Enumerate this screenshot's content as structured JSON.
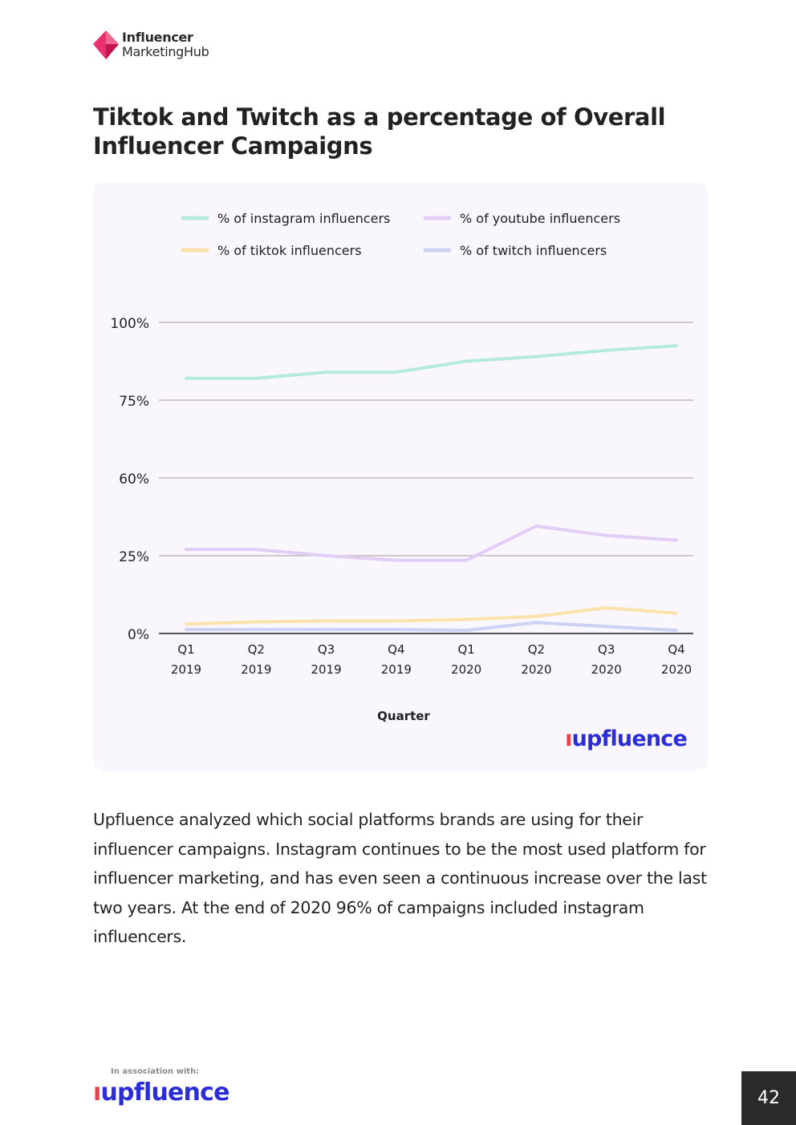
{
  "header": {
    "brand_line1": "Influencer",
    "brand_line2": "MarketingHub"
  },
  "page_title": "Tiktok and Twitch as a percentage of Overall Influencer Campaigns",
  "chart_data": {
    "type": "line",
    "title": "",
    "xlabel": "Quarter",
    "ylabel": "",
    "categories": [
      [
        "Q1",
        "2019"
      ],
      [
        "Q2",
        "2019"
      ],
      [
        "Q3",
        "2019"
      ],
      [
        "Q4",
        "2019"
      ],
      [
        "Q1",
        "2020"
      ],
      [
        "Q2",
        "2020"
      ],
      [
        "Q3",
        "2020"
      ],
      [
        "Q4",
        "2020"
      ]
    ],
    "y_ticks": [
      {
        "label": "100%",
        "level": 4
      },
      {
        "label": "75%",
        "level": 3
      },
      {
        "label": "60%",
        "level": 2
      },
      {
        "label": "25%",
        "level": 1
      },
      {
        "label": "0%",
        "level": 0
      }
    ],
    "grid": true,
    "legend_position": "top",
    "series": [
      {
        "name": "% of instagram influencers",
        "color": "#b3ead8",
        "values": [
          3.28,
          3.28,
          3.36,
          3.36,
          3.5,
          3.56,
          3.64,
          3.7
        ]
      },
      {
        "name": "% of youtube influencers",
        "color": "#e2cdf6",
        "values": [
          1.08,
          1.08,
          1.0,
          0.94,
          0.94,
          1.38,
          1.26,
          1.2
        ]
      },
      {
        "name": "% of tiktok influencers",
        "color": "#fbe2ab",
        "values": [
          0.12,
          0.15,
          0.16,
          0.16,
          0.18,
          0.22,
          0.33,
          0.26
        ]
      },
      {
        "name": "% of twitch influencers",
        "color": "#cbd2f4",
        "values": [
          0.05,
          0.05,
          0.05,
          0.05,
          0.04,
          0.14,
          0.09,
          0.04
        ]
      }
    ],
    "brand": "upfluence"
  },
  "body_text": "Upfluence analyzed which social platforms brands are using for their influencer campaigns. Instagram continues to be the most used platform for influencer marketing, and has even seen a continuous increase over the last two years. At the end of 2020 96% of campaigns included instagram influencers.",
  "footer": {
    "association_label": "In association with:",
    "brand": "upfluence",
    "page_number": "42"
  },
  "colors": {
    "brand_blue": "#2b2ed6",
    "brand_red": "#e8424f",
    "logo_pink": "#e8316e",
    "card_background": "#f9f6fd",
    "grid": "#b9adae"
  },
  "icons": {
    "logo": "diamond-logo-icon"
  }
}
